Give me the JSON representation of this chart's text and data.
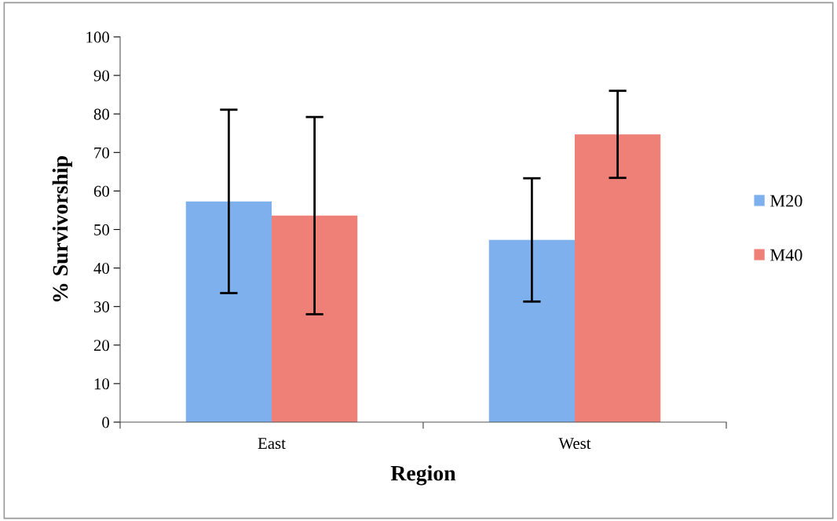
{
  "chart_data": {
    "type": "bar",
    "xlabel": "Region",
    "ylabel": "% Survivorship",
    "categories": [
      "East",
      "West"
    ],
    "series": [
      {
        "name": "M20",
        "color": "#7fb0ee",
        "values": [
          57.3,
          47.3
        ],
        "errors": [
          23.8,
          16
        ]
      },
      {
        "name": "M40",
        "color": "#ee8078",
        "values": [
          53.6,
          74.7
        ],
        "errors": [
          25.6,
          11.3
        ]
      }
    ],
    "ylim": [
      0,
      100
    ],
    "yticks": [
      0,
      10,
      20,
      30,
      40,
      50,
      60,
      70,
      80,
      90,
      100
    ],
    "grid": false,
    "legend": "right"
  }
}
